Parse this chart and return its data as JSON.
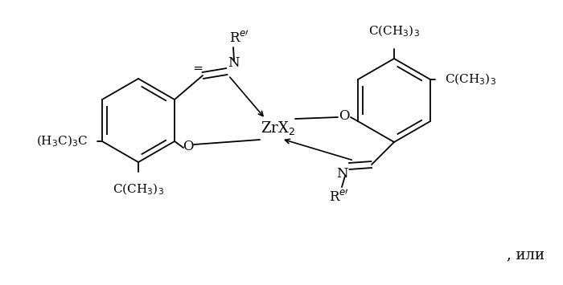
{
  "background": "#ffffff",
  "line_color": "#000000",
  "text_color": "#000000",
  "font_size": 12,
  "font_size_small": 10,
  "title": "",
  "ili_text": ", или",
  "ZrX2_label": "ZrX$_2$",
  "Re_label": "R$^{e\\prime}$",
  "O_label": "O",
  "N_label": "N",
  "CH3_3_C": "C(CH$_3$)$_3$",
  "H3C_3_C": "(H$_3$C)$_3$C"
}
